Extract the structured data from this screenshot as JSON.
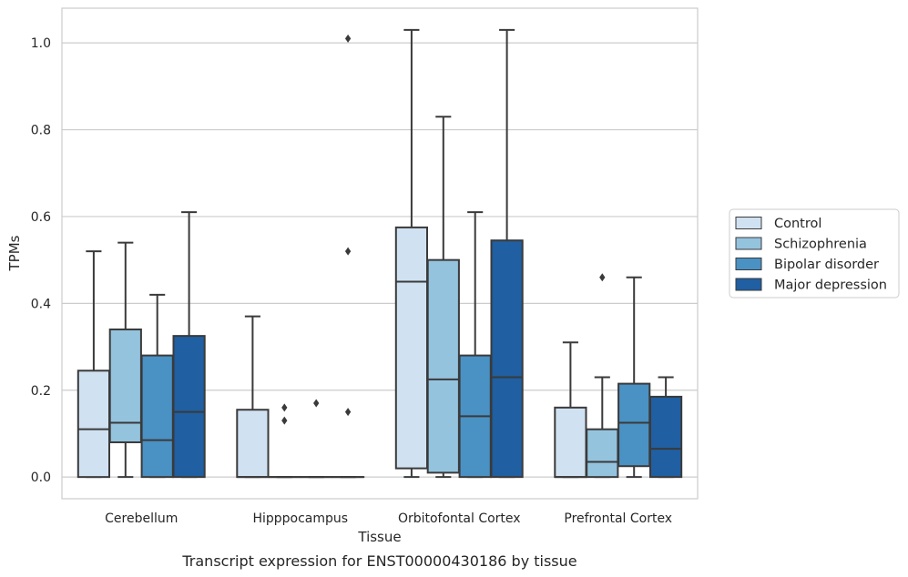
{
  "chart_data": {
    "type": "box",
    "caption": "Transcript expression for ENST00000430186 by tissue",
    "xlabel": "Tissue",
    "ylabel": "TPMs",
    "ylim": [
      -0.05,
      1.08
    ],
    "yticks": [
      "0.0",
      "0.2",
      "0.4",
      "0.6",
      "0.8",
      "1.0"
    ],
    "grid": true,
    "legend_position": "right",
    "categories": [
      "Cerebellum",
      "Hipppocampus",
      "Orbitofontal Cortex",
      "Prefrontal Cortex"
    ],
    "series": [
      {
        "name": "Control",
        "color": "#d0e1f1",
        "boxes": [
          {
            "whislo": 0.0,
            "q1": 0.0,
            "med": 0.11,
            "q3": 0.245,
            "whishi": 0.52,
            "fliers": []
          },
          {
            "whislo": 0.0,
            "q1": 0.0,
            "med": 0.0,
            "q3": 0.155,
            "whishi": 0.37,
            "fliers": []
          },
          {
            "whislo": 0.0,
            "q1": 0.02,
            "med": 0.45,
            "q3": 0.575,
            "whishi": 1.03,
            "fliers": []
          },
          {
            "whislo": 0.0,
            "q1": 0.0,
            "med": 0.0,
            "q3": 0.16,
            "whishi": 0.31,
            "fliers": []
          }
        ]
      },
      {
        "name": "Schizophrenia",
        "color": "#94c3de",
        "boxes": [
          {
            "whislo": 0.0,
            "q1": 0.08,
            "med": 0.125,
            "q3": 0.34,
            "whishi": 0.54,
            "fliers": []
          },
          {
            "whislo": 0.0,
            "q1": 0.0,
            "med": 0.0,
            "q3": 0.0,
            "whishi": 0.0,
            "fliers": [
              0.13,
              0.16
            ]
          },
          {
            "whislo": 0.0,
            "q1": 0.01,
            "med": 0.225,
            "q3": 0.5,
            "whishi": 0.83,
            "fliers": []
          },
          {
            "whislo": 0.0,
            "q1": 0.0,
            "med": 0.035,
            "q3": 0.11,
            "whishi": 0.23,
            "fliers": [
              0.46
            ]
          }
        ]
      },
      {
        "name": "Bipolar disorder",
        "color": "#4a91c4",
        "boxes": [
          {
            "whislo": 0.0,
            "q1": 0.0,
            "med": 0.085,
            "q3": 0.28,
            "whishi": 0.42,
            "fliers": []
          },
          {
            "whislo": 0.0,
            "q1": 0.0,
            "med": 0.0,
            "q3": 0.0,
            "whishi": 0.0,
            "fliers": [
              0.17
            ]
          },
          {
            "whislo": 0.0,
            "q1": 0.0,
            "med": 0.14,
            "q3": 0.28,
            "whishi": 0.61,
            "fliers": []
          },
          {
            "whislo": 0.0,
            "q1": 0.025,
            "med": 0.125,
            "q3": 0.215,
            "whishi": 0.46,
            "fliers": []
          }
        ]
      },
      {
        "name": "Major depression",
        "color": "#1f5fa2",
        "boxes": [
          {
            "whislo": 0.0,
            "q1": 0.0,
            "med": 0.15,
            "q3": 0.325,
            "whishi": 0.61,
            "fliers": []
          },
          {
            "whislo": 0.0,
            "q1": 0.0,
            "med": 0.0,
            "q3": 0.0,
            "whishi": 0.0,
            "fliers": [
              0.15,
              0.52,
              1.01
            ]
          },
          {
            "whislo": 0.0,
            "q1": 0.0,
            "med": 0.23,
            "q3": 0.545,
            "whishi": 1.03,
            "fliers": []
          },
          {
            "whislo": 0.0,
            "q1": 0.0,
            "med": 0.065,
            "q3": 0.185,
            "whishi": 0.23,
            "fliers": []
          }
        ]
      }
    ]
  }
}
